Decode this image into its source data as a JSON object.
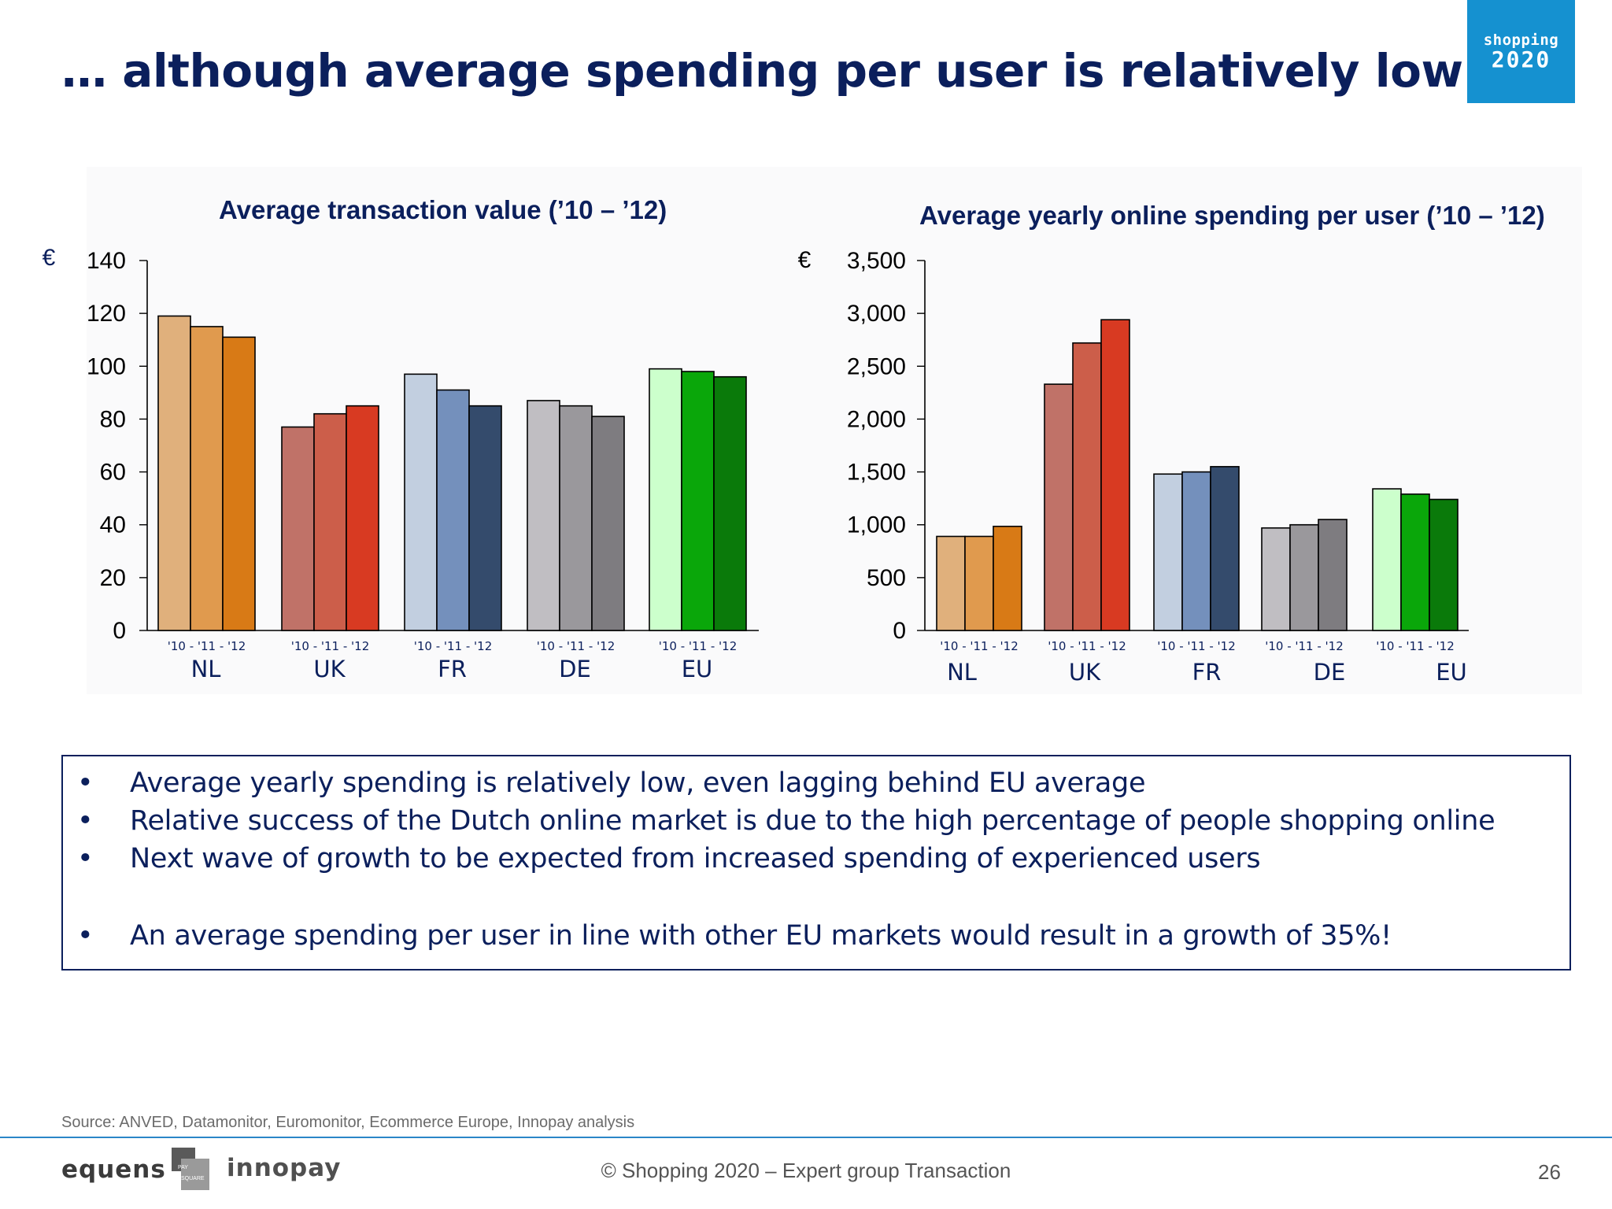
{
  "title": "… although average spending per user is relatively low",
  "logo": {
    "line1": "shopping",
    "line2": "2020"
  },
  "chart_data": [
    {
      "type": "bar",
      "title": "Average transaction value (’10 – ’12)",
      "unit": "€",
      "ylim": [
        0,
        140
      ],
      "yticks": [
        "0",
        "20",
        "40",
        "60",
        "80",
        "100",
        "120",
        "140"
      ],
      "year_label": "'10 - '11 - '12",
      "categories": [
        "NL",
        "UK",
        "FR",
        "DE",
        "EU"
      ],
      "series": [
        {
          "values": [
            119,
            77,
            97,
            87,
            99
          ]
        },
        {
          "values": [
            115,
            82,
            91,
            85,
            98
          ]
        },
        {
          "values": [
            111,
            85,
            85,
            81,
            96
          ]
        }
      ],
      "colors": [
        [
          "#e0b07c",
          "#e09a4e",
          "#d87a16"
        ],
        [
          "#c07268",
          "#cc5e4a",
          "#d83a22"
        ],
        [
          "#c2cfe0",
          "#7490bc",
          "#344b6c"
        ],
        [
          "#c0bec2",
          "#9a989c",
          "#7e7c80"
        ],
        [
          "#ccffcc",
          "#0aa70a",
          "#0a7a0a"
        ]
      ]
    },
    {
      "type": "bar",
      "title": "Average yearly online spending per user (’10 – ’12)",
      "unit": "€",
      "ylim": [
        0,
        3500
      ],
      "yticks": [
        "0",
        "500",
        "1,000",
        "1,500",
        "2,000",
        "2,500",
        "3,000",
        "3,500"
      ],
      "year_label": "'10 - '11 - '12",
      "categories": [
        "NL",
        "UK",
        "FR",
        "DE",
        "EU"
      ],
      "series": [
        {
          "values": [
            890,
            2330,
            1480,
            970,
            1340
          ]
        },
        {
          "values": [
            890,
            2720,
            1500,
            1000,
            1290
          ]
        },
        {
          "values": [
            985,
            2940,
            1550,
            1050,
            1240
          ]
        }
      ],
      "colors": [
        [
          "#e0b07c",
          "#e09a4e",
          "#d87a16"
        ],
        [
          "#c07268",
          "#cc5e4a",
          "#d83a22"
        ],
        [
          "#c2cfe0",
          "#7490bc",
          "#344b6c"
        ],
        [
          "#c0bec2",
          "#9a989c",
          "#7e7c80"
        ],
        [
          "#ccffcc",
          "#0aa70a",
          "#0a7a0a"
        ]
      ]
    }
  ],
  "bullets": [
    {
      "marker": "•",
      "text": "Average yearly spending is relatively low, even lagging behind EU average"
    },
    {
      "marker": "•",
      "text": "Relative success of the Dutch online market is due to the high percentage of people shopping online"
    },
    {
      "marker": "•",
      "text": "Next wave of growth to be expected from increased spending of experienced users"
    },
    {
      "marker": "•",
      "text": "An average spending per user in line with other EU markets would result in a growth of 35%!"
    }
  ],
  "source": "Source: ANVED, Datamonitor, Euromonitor, Ecommerce Europe, Innopay analysis",
  "footer": {
    "text": "© Shopping 2020 – Expert group Transaction",
    "page": "26",
    "logo_equens": "equens",
    "logo_paysquare_1": "PAY",
    "logo_paysquare_2": "SQUARE",
    "logo_innopay": "innopay"
  },
  "colors": {
    "navy": "#0b1f5c",
    "logo_blue": "#1591d0",
    "footer_line": "#2a86c8"
  }
}
